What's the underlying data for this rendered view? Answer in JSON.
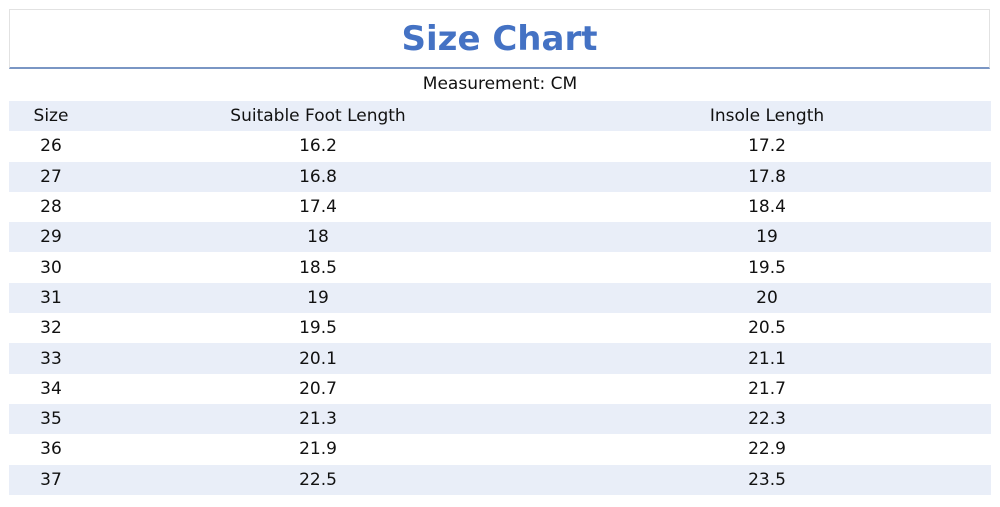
{
  "title": "Size Chart",
  "subtitle": "Measurement: CM",
  "colors": {
    "title": "#4472c4",
    "stripe": "#e9eef8",
    "rule": "#7a96c4"
  },
  "table": {
    "headers": [
      "Size",
      "Suitable Foot Length",
      "Insole Length"
    ],
    "rows": [
      [
        "26",
        "16.2",
        "17.2"
      ],
      [
        "27",
        "16.8",
        "17.8"
      ],
      [
        "28",
        "17.4",
        "18.4"
      ],
      [
        "29",
        "18",
        "19"
      ],
      [
        "30",
        "18.5",
        "19.5"
      ],
      [
        "31",
        "19",
        "20"
      ],
      [
        "32",
        "19.5",
        "20.5"
      ],
      [
        "33",
        "20.1",
        "21.1"
      ],
      [
        "34",
        "20.7",
        "21.7"
      ],
      [
        "35",
        "21.3",
        "22.3"
      ],
      [
        "36",
        "21.9",
        "22.9"
      ],
      [
        "37",
        "22.5",
        "23.5"
      ]
    ]
  }
}
